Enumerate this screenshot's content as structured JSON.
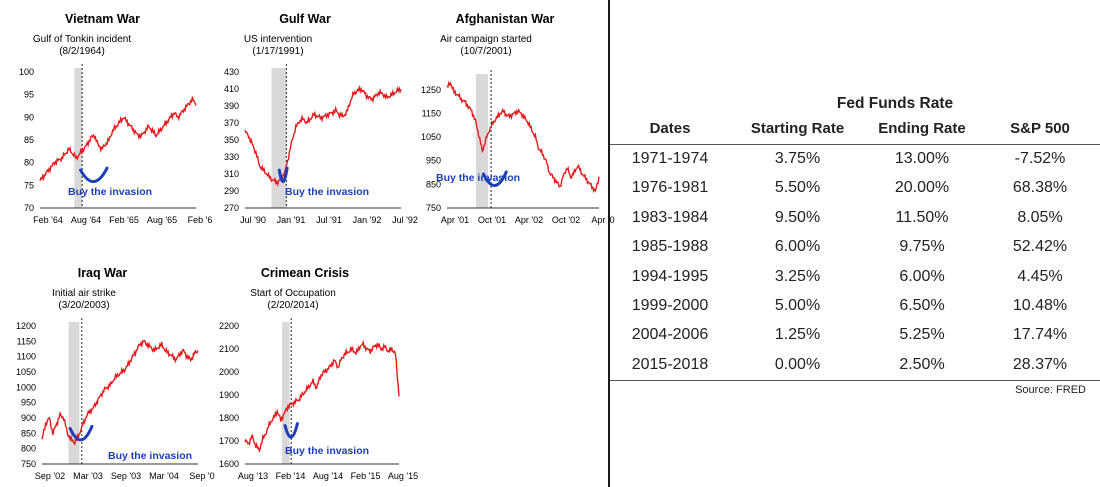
{
  "chart_data": [
    {
      "type": "line",
      "title": "Vietnam War",
      "annotation_line1": "Gulf of Tonkin incident",
      "annotation_line2": "(8/2/1964)",
      "callout": "Buy the invasion",
      "y_ticks": [
        "100",
        "95",
        "90",
        "85",
        "80",
        "75",
        "70"
      ],
      "ylim": [
        70,
        100
      ],
      "x_ticks": [
        "Feb '64",
        "Aug '64",
        "Feb '65",
        "Aug '65",
        "Feb '6"
      ],
      "event_x": 0.27,
      "shade": [
        0.22,
        0.27
      ],
      "series": [
        {
          "values": [
            76,
            77,
            78,
            79,
            80,
            80.5,
            81,
            82,
            83,
            82,
            81,
            82,
            83,
            84,
            85.5,
            86,
            84,
            83,
            84,
            85,
            87,
            88,
            89,
            90,
            89,
            88,
            87,
            86,
            86,
            87,
            88,
            87,
            86,
            87,
            88,
            89,
            90,
            91,
            90,
            91,
            92,
            93,
            94,
            93
          ]
        }
      ],
      "smile": [
        0.26,
        0.43,
        0.78
      ]
    },
    {
      "type": "line",
      "title": "Gulf War",
      "annotation_line1": "US intervention",
      "annotation_line2": "(1/17/1991)",
      "callout": "Buy the invasion",
      "y_ticks": [
        "430",
        "410",
        "390",
        "370",
        "350",
        "330",
        "310",
        "290",
        "270"
      ],
      "ylim": [
        270,
        430
      ],
      "x_ticks": [
        "Jul '90",
        "Jan '91",
        "Jul '91",
        "Jan '92",
        "Jul '92"
      ],
      "event_x": 0.265,
      "shade": [
        0.17,
        0.265
      ],
      "series": [
        {
          "values": [
            360,
            355,
            345,
            335,
            320,
            315,
            310,
            305,
            302,
            300,
            305,
            312,
            330,
            350,
            365,
            372,
            375,
            370,
            375,
            380,
            378,
            376,
            378,
            380,
            382,
            385,
            380,
            378,
            382,
            395,
            405,
            408,
            410,
            405,
            400,
            398,
            402,
            406,
            404,
            400,
            402,
            405,
            408,
            410
          ]
        }
      ],
      "smile": [
        0.22,
        0.27,
        0.78
      ]
    },
    {
      "type": "line",
      "title": "Afghanistan War",
      "annotation_line1": "Air campaign started",
      "annotation_line2": "(10/7/2001)",
      "callout": "Buy the invasion",
      "y_ticks": [
        "1250",
        "1150",
        "1050",
        "950",
        "850",
        "750"
      ],
      "ylim": [
        750,
        1300
      ],
      "x_ticks": [
        "Apr '01",
        "Oct '01",
        "Apr '02",
        "Oct '02",
        "Apr '0"
      ],
      "event_x": 0.29,
      "shade": [
        0.19,
        0.27
      ],
      "series": [
        {
          "values": [
            1260,
            1280,
            1240,
            1230,
            1210,
            1200,
            1180,
            1160,
            1120,
            1060,
            990,
            1040,
            1080,
            1110,
            1130,
            1150,
            1160,
            1140,
            1140,
            1150,
            1160,
            1150,
            1130,
            1110,
            1080,
            1050,
            1000,
            980,
            950,
            900,
            880,
            860,
            840,
            890,
            920,
            880,
            900,
            930,
            900,
            880,
            860,
            840,
            820,
            880
          ]
        }
      ],
      "smile": [
        0.24,
        0.39,
        0.8
      ]
    },
    {
      "type": "line",
      "title": "Iraq War",
      "annotation_line1": "Initial air strike",
      "annotation_line2": "(3/20/2003)",
      "callout": "Buy the invasion",
      "y_ticks": [
        "1200",
        "1150",
        "1100",
        "1050",
        "1000",
        "950",
        "900",
        "850",
        "800",
        "750"
      ],
      "ylim": [
        750,
        1200
      ],
      "x_ticks": [
        "Sep '02",
        "Mar '03",
        "Sep '03",
        "Mar '04",
        "Sep '0"
      ],
      "event_x": 0.255,
      "shade": [
        0.17,
        0.24
      ],
      "series": [
        {
          "values": [
            830,
            880,
            900,
            850,
            880,
            910,
            900,
            850,
            830,
            820,
            840,
            870,
            900,
            920,
            930,
            950,
            970,
            990,
            1000,
            1010,
            1030,
            1040,
            1050,
            1060,
            1080,
            1100,
            1120,
            1140,
            1150,
            1140,
            1130,
            1120,
            1130,
            1140,
            1120,
            1110,
            1100,
            1090,
            1110,
            1120,
            1100,
            1090,
            1110,
            1120
          ]
        }
      ],
      "smile": [
        0.18,
        0.32,
        0.8
      ]
    },
    {
      "type": "line",
      "title": "Crimean Crisis",
      "annotation_line1": "Start of Occupation",
      "annotation_line2": "(2/20/2014)",
      "callout": "Buy the invasion",
      "y_ticks": [
        "2200",
        "2100",
        "2000",
        "1900",
        "1800",
        "1700",
        "1600"
      ],
      "ylim": [
        1600,
        2200
      ],
      "x_ticks": [
        "Aug '13",
        "Feb '14",
        "Aug '14",
        "Feb '15",
        "Aug '15"
      ],
      "event_x": 0.3,
      "shade": [
        0.24,
        0.29
      ],
      "series": [
        {
          "values": [
            1700,
            1690,
            1720,
            1680,
            1660,
            1710,
            1740,
            1780,
            1800,
            1830,
            1790,
            1820,
            1850,
            1860,
            1870,
            1880,
            1900,
            1920,
            1940,
            1960,
            1930,
            1980,
            2000,
            2010,
            2030,
            2050,
            2020,
            2060,
            2080,
            2090,
            2100,
            2080,
            2110,
            2120,
            2100,
            2090,
            2110,
            2120,
            2100,
            2110,
            2090,
            2100,
            2080,
            1900
          ]
        }
      ],
      "smile": [
        0.26,
        0.34,
        0.78
      ]
    }
  ],
  "table": {
    "title": "Fed Funds Rate",
    "headers": [
      "Dates",
      "Starting Rate",
      "Ending Rate",
      "S&P 500"
    ],
    "rows": [
      [
        "1971-1974",
        "3.75%",
        "13.00%",
        "-7.52%"
      ],
      [
        "1976-1981",
        "5.50%",
        "20.00%",
        "68.38%"
      ],
      [
        "1983-1984",
        "9.50%",
        "11.50%",
        "8.05%"
      ],
      [
        "1985-1988",
        "6.00%",
        "9.75%",
        "52.42%"
      ],
      [
        "1994-1995",
        "3.25%",
        "6.00%",
        "4.45%"
      ],
      [
        "1999-2000",
        "5.00%",
        "6.50%",
        "10.48%"
      ],
      [
        "2004-2006",
        "1.25%",
        "5.25%",
        "17.74%"
      ],
      [
        "2015-2018",
        "0.00%",
        "2.50%",
        "28.37%"
      ]
    ],
    "source": "Source: FRED"
  }
}
